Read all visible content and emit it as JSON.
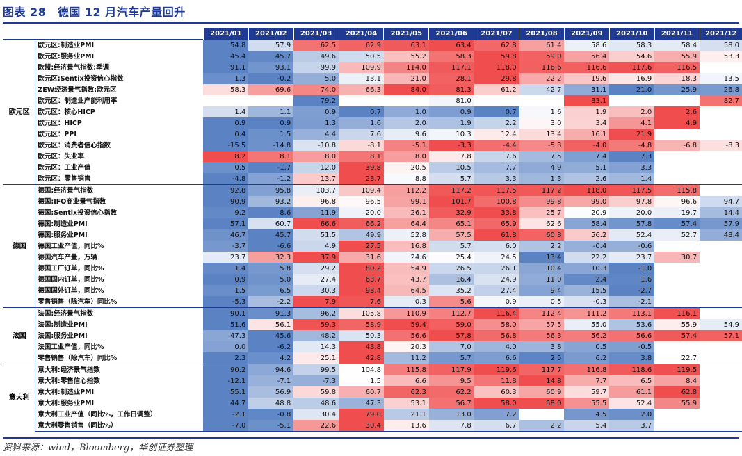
{
  "title": "图表 28　德国 12 月汽车产量回升",
  "source": "资料来源：wind，Bloomberg，华创证券整理",
  "months": [
    "2021/01",
    "2021/02",
    "2021/03",
    "2021/04",
    "2021/05",
    "2021/06",
    "2021/07",
    "2021/08",
    "2021/09",
    "2021/10",
    "2021/11",
    "2021/12"
  ],
  "groups": [
    {
      "region": "欧元区",
      "rows": [
        {
          "label": "欧元区:制造业PMI",
          "values": [
            "54.8",
            "57.9",
            "62.5",
            "62.9",
            "63.1",
            "63.4",
            "62.8",
            "61.4",
            "58.6",
            "58.3",
            "58.4",
            "58.0"
          ]
        },
        {
          "label": "欧元区:服务业PMI",
          "values": [
            "45.4",
            "45.7",
            "49.6",
            "50.5",
            "55.2",
            "58.3",
            "59.8",
            "59.0",
            "56.4",
            "54.6",
            "55.9",
            "53.3"
          ]
        },
        {
          "label": "欧盟:经济景气指数:季调",
          "values": [
            "91.1",
            "93.1",
            "99.9",
            "109.9",
            "114.0",
            "117.1",
            "118.0",
            "116.6",
            "116.6",
            "117.6",
            "116.5",
            ""
          ]
        },
        {
          "label": "欧元区:Sentix投资信心指数",
          "values": [
            "1.3",
            "-0.2",
            "5.0",
            "13.1",
            "21.0",
            "28.1",
            "29.8",
            "22.2",
            "19.6",
            "16.9",
            "18.3",
            "13.5"
          ]
        },
        {
          "label": "ZEW经济景气指数:欧元区",
          "values": [
            "58.3",
            "69.6",
            "74.0",
            "66.3",
            "84.0",
            "81.3",
            "61.2",
            "42.7",
            "31.1",
            "21.0",
            "25.9",
            "26.8"
          ]
        },
        {
          "label": "欧元区：制造业产能利用率",
          "values": [
            "",
            "",
            "79.2",
            "",
            "",
            "81.0",
            "",
            "",
            "83.1",
            "",
            "",
            "82.7"
          ]
        },
        {
          "label": "欧元区：核心HICP",
          "values": [
            "1.4",
            "1.1",
            "0.9",
            "0.7",
            "1.0",
            "0.9",
            "0.7",
            "1.6",
            "1.9",
            "2.0",
            "2.6",
            ""
          ]
        },
        {
          "label": "欧元区：HICP",
          "values": [
            "0.9",
            "0.9",
            "1.3",
            "1.6",
            "2.0",
            "1.9",
            "2.2",
            "3.0",
            "3.4",
            "4.1",
            "4.9",
            ""
          ]
        },
        {
          "label": "欧元区：PPI",
          "values": [
            "0.4",
            "1.5",
            "4.4",
            "7.6",
            "9.6",
            "10.3",
            "12.4",
            "13.4",
            "16.1",
            "21.9",
            "",
            ""
          ]
        },
        {
          "label": "欧元区：消费者信心指数",
          "values": [
            "-15.5",
            "-14.8",
            "-10.8",
            "-8.1",
            "-5.1",
            "-3.3",
            "-4.4",
            "-5.3",
            "-4.0",
            "-4.8",
            "-6.8",
            "-8.3"
          ]
        },
        {
          "label": "欧元区：失业率",
          "values": [
            "8.2",
            "8.1",
            "8.0",
            "8.1",
            "8.0",
            "7.8",
            "7.6",
            "7.5",
            "7.4",
            "7.3",
            "",
            ""
          ]
        },
        {
          "label": "欧元区：工业产值",
          "values": [
            "0.5",
            "-1.7",
            "12.0",
            "39.8",
            "20.5",
            "10.5",
            "7.7",
            "4.9",
            "5.1",
            "3.3",
            "",
            ""
          ]
        },
        {
          "label": "欧元区：零售销售",
          "values": [
            "-4.8",
            "-1.2",
            "13.7",
            "23.7",
            "8.8",
            "5.7",
            "3.3",
            "1.3",
            "2.6",
            "1.4",
            "",
            ""
          ]
        }
      ]
    },
    {
      "region": "德国",
      "rows": [
        {
          "label": "德国:经济景气指数",
          "values": [
            "92.8",
            "95.8",
            "103.7",
            "109.4",
            "112.2",
            "117.2",
            "117.5",
            "117.2",
            "118.0",
            "117.5",
            "115.8",
            ""
          ]
        },
        {
          "label": "德国:IFO商业景气指数",
          "values": [
            "90.9",
            "93.2",
            "96.8",
            "96.5",
            "99.1",
            "101.7",
            "100.8",
            "99.8",
            "99.0",
            "97.8",
            "96.6",
            "94.7"
          ]
        },
        {
          "label": "德国:Sentix投资信心指数",
          "values": [
            "9.2",
            "8.6",
            "11.9",
            "20.0",
            "26.1",
            "32.9",
            "33.8",
            "25.7",
            "20.9",
            "20.0",
            "19.7",
            "14.4"
          ]
        },
        {
          "label": "德国:制造业PMI",
          "values": [
            "57.1",
            "60.7",
            "66.6",
            "66.2",
            "64.4",
            "65.1",
            "65.9",
            "62.6",
            "58.4",
            "57.8",
            "57.4",
            "57.9"
          ]
        },
        {
          "label": "德国:服务业PMI",
          "values": [
            "46.7",
            "45.7",
            "51.5",
            "49.9",
            "52.8",
            "57.5",
            "61.8",
            "60.8",
            "56.2",
            "52.4",
            "52.7",
            "48.4"
          ]
        },
        {
          "label": "德国工业产值，同比%",
          "values": [
            "-3.7",
            "-6.6",
            "4.9",
            "27.5",
            "16.8",
            "5.7",
            "6.0",
            "2.2",
            "-0.4",
            "-0.6",
            "",
            ""
          ]
        },
        {
          "label": "德国汽车产量，万辆",
          "values": [
            "23.7",
            "32.3",
            "37.9",
            "31.6",
            "24.6",
            "25.4",
            "24.5",
            "13.4",
            "22.2",
            "23.7",
            "30.7",
            ""
          ]
        },
        {
          "label": "德国工厂订单，同比%",
          "values": [
            "1.4",
            "5.8",
            "29.2",
            "80.2",
            "54.9",
            "26.5",
            "26.1",
            "10.4",
            "10.3",
            "-1.0",
            "",
            ""
          ]
        },
        {
          "label": "德国国内订单，同比%",
          "values": [
            "0.9",
            "5.0",
            "27.4",
            "63.7",
            "43.7",
            "16.4",
            "24.9",
            "11.0",
            "2.4",
            "1.6",
            "",
            ""
          ]
        },
        {
          "label": "德国国外订单，同比%",
          "values": [
            "1.5",
            "6.5",
            "30.3",
            "93.4",
            "64.5",
            "35.2",
            "27.4",
            "9.4",
            "15.5",
            "-2.7",
            "",
            ""
          ]
        },
        {
          "label": "零售销售（除汽车）同比%",
          "values": [
            "-5.3",
            "-2.2",
            "7.9",
            "7.6",
            "0.3",
            "5.6",
            "0.9",
            "0.5",
            "-0.3",
            "-2.1",
            "",
            ""
          ]
        }
      ]
    },
    {
      "region": "法国",
      "rows": [
        {
          "label": "法国:经济景气指数",
          "values": [
            "90.1",
            "91.3",
            "96.2",
            "105.8",
            "110.9",
            "112.7",
            "116.4",
            "112.4",
            "111.2",
            "113.1",
            "116.1",
            ""
          ]
        },
        {
          "label": "法国:制造业PMI",
          "values": [
            "51.6",
            "56.1",
            "59.3",
            "58.9",
            "59.4",
            "59.0",
            "58.0",
            "57.5",
            "55.0",
            "53.6",
            "55.9",
            "54.9"
          ]
        },
        {
          "label": "法国:服务业PMI",
          "values": [
            "47.3",
            "45.6",
            "48.2",
            "50.3",
            "56.6",
            "57.8",
            "56.8",
            "56.3",
            "56.2",
            "56.6",
            "57.4",
            "57.1"
          ]
        },
        {
          "label": "法国工业产值，同比%",
          "values": [
            "0.0",
            "-6.2",
            "14.3",
            "43.8",
            "20.3",
            "7.0",
            "4.0",
            "3.8",
            "0.5",
            "-0.5",
            "",
            ""
          ]
        },
        {
          "label": "零售销售（除汽车）同比%",
          "values": [
            "2.3",
            "4.2",
            "25.1",
            "42.8",
            "11.2",
            "5.7",
            "6.6",
            "2.5",
            "6.2",
            "3.8",
            "22.7",
            ""
          ]
        }
      ]
    },
    {
      "region": "意大利",
      "rows": [
        {
          "label": "意大利:经济景气指数",
          "values": [
            "90.2",
            "94.6",
            "99.5",
            "104.8",
            "115.8",
            "117.9",
            "119.6",
            "117.7",
            "116.8",
            "118.6",
            "119.5",
            ""
          ]
        },
        {
          "label": "意大利:零售信心指数",
          "values": [
            "-12.1",
            "-7.1",
            "-7.3",
            "1.5",
            "6.6",
            "9.5",
            "11.8",
            "14.8",
            "7.7",
            "6.5",
            "8.4",
            ""
          ]
        },
        {
          "label": "意大利:制造业PMI",
          "values": [
            "55.1",
            "56.9",
            "59.8",
            "60.7",
            "62.3",
            "62.2",
            "60.3",
            "60.9",
            "59.7",
            "61.1",
            "62.8",
            ""
          ]
        },
        {
          "label": "意大利:服务业PMI",
          "values": [
            "44.7",
            "48.8",
            "48.6",
            "47.3",
            "53.1",
            "56.7",
            "58.0",
            "58.0",
            "55.5",
            "52.4",
            "55.9",
            ""
          ]
        },
        {
          "label": "意大利工业产值（同比%，工作日调整）",
          "values": [
            "-2.1",
            "-0.8",
            "30.4",
            "79.0",
            "21.1",
            "13.0",
            "7.2",
            "",
            "4.5",
            "2.0",
            "",
            ""
          ]
        },
        {
          "label": "意大利零售销售（同比%）",
          "values": [
            "-7.0",
            "-5.1",
            "22.6",
            "30.4",
            "13.6",
            "7.8",
            "6.7",
            "2.2",
            "5.4",
            "3.7",
            "",
            ""
          ]
        }
      ]
    }
  ]
}
